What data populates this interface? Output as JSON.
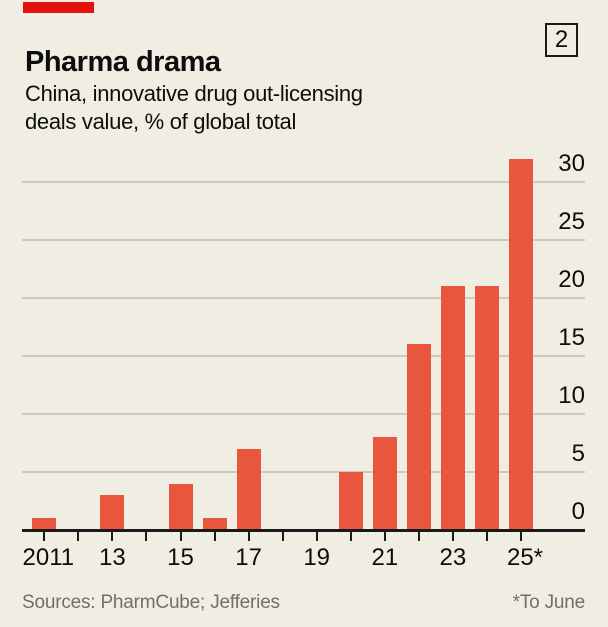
{
  "header": {
    "title": "Pharma drama",
    "index_label": "2"
  },
  "subtitle": {
    "line1": "China, innovative drug out-licensing",
    "line2": "deals value, % of global total"
  },
  "footer": {
    "sources": "Sources: PharmCube; Jefferies",
    "footnote": "*To June"
  },
  "colors": {
    "background": "#f0eee3",
    "brand_red": "#e3120b",
    "bar": "#e9563e",
    "grid": "#cdc9be",
    "axis": "#1a1a1a",
    "text": "#0d0d0d",
    "muted": "#716f66"
  },
  "chart_data": {
    "type": "bar",
    "title": "Pharma drama",
    "subtitle": "China, innovative drug out-licensing deals value, % of global total",
    "categories": [
      2011,
      2012,
      2013,
      2014,
      2015,
      2016,
      2017,
      2018,
      2019,
      2020,
      2021,
      2022,
      2023,
      2024,
      2025
    ],
    "values": [
      1,
      0,
      3,
      0,
      4,
      1,
      7,
      0,
      0,
      5,
      8,
      16,
      21,
      21,
      32
    ],
    "xtick_labels": {
      "2011": "2011",
      "2013": "13",
      "2015": "15",
      "2017": "17",
      "2019": "19",
      "2021": "21",
      "2023": "23",
      "2025": "25*"
    },
    "yticks": [
      0,
      5,
      10,
      15,
      20,
      25,
      30
    ],
    "ylim": [
      0,
      32
    ],
    "grid": true,
    "legend": false,
    "xlabel": "",
    "ylabel": "% of global total",
    "footnote": "*To June"
  }
}
